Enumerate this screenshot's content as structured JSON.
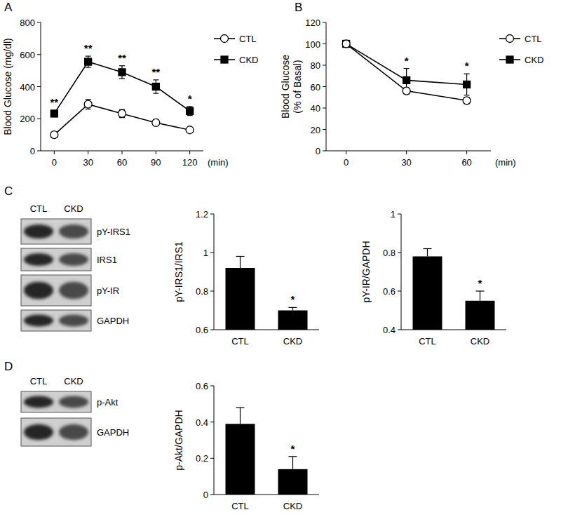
{
  "chart_data": [
    {
      "type": "line",
      "y_label": "Blood Glucose (mg/dl)",
      "x_label": "(min)",
      "x": [
        0,
        30,
        60,
        90,
        120
      ],
      "xlim": [
        -12,
        132
      ],
      "xticks": [
        0,
        30,
        60,
        90,
        120
      ],
      "ylim": [
        0,
        800
      ],
      "yticks": [
        0,
        200,
        400,
        600,
        800
      ],
      "legend": "right",
      "series": [
        {
          "name": "CTL",
          "color": "#000000",
          "marker": "circle-open",
          "values": [
            100,
            290,
            232,
            175,
            130
          ],
          "errors": [
            10,
            30,
            25,
            20,
            12
          ]
        },
        {
          "name": "CKD",
          "color": "#000000",
          "marker": "square",
          "values": [
            232,
            555,
            490,
            400,
            248
          ],
          "errors": [
            20,
            35,
            40,
            42,
            28
          ]
        }
      ],
      "annotations": [
        {
          "x": 0,
          "text": "**"
        },
        {
          "x": 30,
          "text": "**"
        },
        {
          "x": 60,
          "text": "**"
        },
        {
          "x": 90,
          "text": "**"
        },
        {
          "x": 120,
          "text": "*"
        }
      ]
    },
    {
      "type": "line",
      "y_label": [
        "Blood Glucose",
        "(% of Basal)"
      ],
      "x_label": "(min)",
      "x": [
        0,
        30,
        60
      ],
      "xlim": [
        -10,
        72
      ],
      "xticks": [
        0,
        30,
        60
      ],
      "ylim": [
        0,
        120
      ],
      "yticks": [
        0,
        20,
        40,
        60,
        80,
        100,
        120
      ],
      "legend": "right",
      "series": [
        {
          "name": "CTL",
          "color": "#000000",
          "marker": "circle-open",
          "values": [
            100,
            56,
            47
          ],
          "errors": [
            2,
            3,
            3
          ]
        },
        {
          "name": "CKD",
          "color": "#000000",
          "marker": "square",
          "values": [
            100,
            66,
            62
          ],
          "errors": [
            2,
            11,
            10
          ]
        }
      ],
      "annotations": [
        {
          "x": 30,
          "text": "*"
        },
        {
          "x": 60,
          "text": "*"
        }
      ]
    },
    {
      "type": "bar",
      "y_label": "pY-IRS1/IRS1",
      "categories": [
        "CTL",
        "CKD"
      ],
      "values": [
        0.92,
        0.7
      ],
      "errors": [
        0.06,
        0.015
      ],
      "color": "#000000",
      "ylim": [
        0.6,
        1.2
      ],
      "yticks": [
        0.6,
        0.8,
        1,
        1.2
      ],
      "annotations": [
        {
          "category": "CKD",
          "text": "*"
        }
      ]
    },
    {
      "type": "bar",
      "y_label": "pY-IR/GAPDH",
      "categories": [
        "CTL",
        "CKD"
      ],
      "values": [
        0.78,
        0.55
      ],
      "errors": [
        0.04,
        0.05
      ],
      "color": "#000000",
      "ylim": [
        0.4,
        1
      ],
      "yticks": [
        0.4,
        0.6,
        0.8,
        1
      ],
      "annotations": [
        {
          "category": "CKD",
          "text": "*"
        }
      ]
    },
    {
      "type": "bar",
      "y_label": "p-Akt/GAPDH",
      "categories": [
        "CTL",
        "CKD"
      ],
      "values": [
        0.39,
        0.14
      ],
      "errors": [
        0.09,
        0.07
      ],
      "color": "#000000",
      "ylim": [
        0,
        0.6
      ],
      "yticks": [
        0,
        0.2,
        0.4,
        0.6
      ],
      "annotations": [
        {
          "category": "CKD",
          "text": "*"
        }
      ]
    }
  ],
  "panel_labels": [
    "A",
    "B",
    "C",
    "D"
  ],
  "blots": [
    {
      "lanes": [
        "CTL",
        "CKD"
      ],
      "rows": [
        "pY-IRS1",
        "IRS1",
        "pY-IR",
        "GAPDH"
      ]
    },
    {
      "lanes": [
        "CTL",
        "CKD"
      ],
      "rows": [
        "p-Akt",
        "GAPDH"
      ]
    }
  ]
}
